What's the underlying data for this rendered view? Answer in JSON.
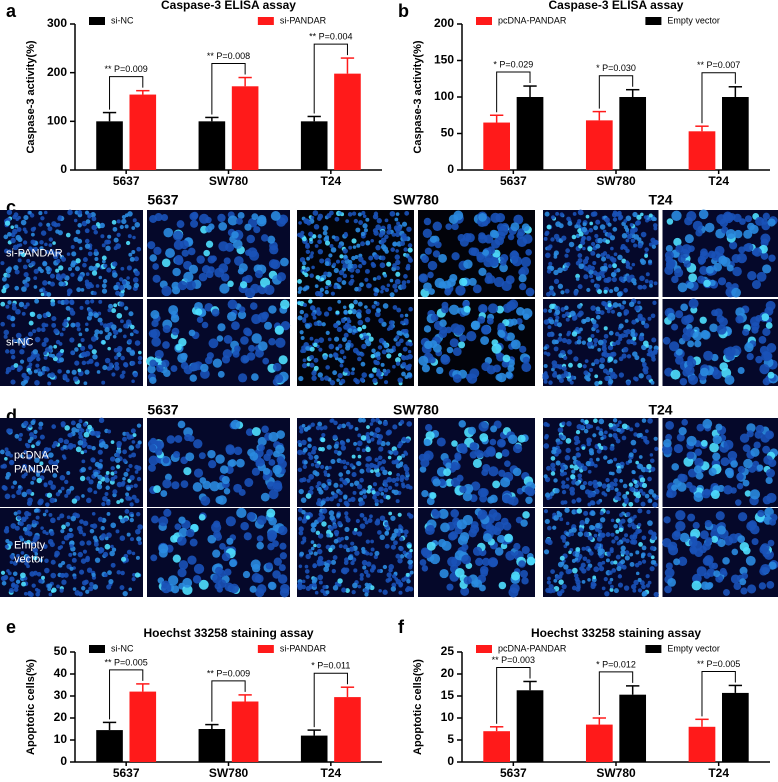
{
  "chart_data": [
    {
      "type": "bar",
      "panel": "a",
      "title": "Caspase-3 ELISA assay",
      "y_label": "Caspase-3 activity(%)",
      "categories": [
        "5637",
        "SW780",
        "T24"
      ],
      "series": [
        {
          "name": "si-NC",
          "color": "#000000",
          "values": [
            100,
            100,
            100
          ],
          "errors": [
            18,
            8,
            10
          ]
        },
        {
          "name": "si-PANDAR",
          "color": "#ff1a1a",
          "values": [
            155,
            172,
            198
          ],
          "errors": [
            8,
            18,
            32
          ]
        }
      ],
      "annotations": [
        "** P=0.009",
        "** P=0.008",
        "** P=0.004"
      ],
      "ylim": [
        0,
        300
      ],
      "yticks": [
        0,
        100,
        200,
        300
      ]
    },
    {
      "type": "bar",
      "panel": "b",
      "title": "Caspase-3 ELISA assay",
      "y_label": "Caspase-3 activity(%)",
      "categories": [
        "5637",
        "SW780",
        "T24"
      ],
      "series": [
        {
          "name": "pcDNA-PANDAR",
          "color": "#ff1a1a",
          "values": [
            65,
            68,
            53
          ],
          "errors": [
            10,
            12,
            7
          ]
        },
        {
          "name": "Empty vector",
          "color": "#000000",
          "values": [
            100,
            100,
            100
          ],
          "errors": [
            15,
            10,
            14
          ]
        }
      ],
      "annotations": [
        "* P=0.029",
        "* P=0.030",
        "** P=0.007"
      ],
      "ylim": [
        0,
        200
      ],
      "yticks": [
        0,
        50,
        100,
        150,
        200
      ]
    },
    {
      "type": "bar",
      "panel": "e",
      "title": "Hoechst 33258 staining assay",
      "y_label": "Apoptotic cells(%)",
      "categories": [
        "5637",
        "SW780",
        "T24"
      ],
      "series": [
        {
          "name": "si-NC",
          "color": "#000000",
          "values": [
            14.5,
            15,
            12
          ],
          "errors": [
            3.5,
            2,
            2.5
          ]
        },
        {
          "name": "si-PANDAR",
          "color": "#ff1a1a",
          "values": [
            32,
            27.5,
            29.5
          ],
          "errors": [
            3.5,
            3,
            4.5
          ]
        }
      ],
      "annotations": [
        "** P=0.005",
        "** P=0.009",
        "* P=0.011"
      ],
      "ylim": [
        0,
        50
      ],
      "yticks": [
        0,
        10,
        20,
        30,
        40,
        50
      ]
    },
    {
      "type": "bar",
      "panel": "f",
      "title": "Hoechst 33258 staining assay",
      "y_label": "Apoptotic cells(%)",
      "categories": [
        "5637",
        "SW780",
        "T24"
      ],
      "series": [
        {
          "name": "pcDNA-PANDAR",
          "color": "#ff1a1a",
          "values": [
            7,
            8.5,
            8
          ],
          "errors": [
            1,
            1.5,
            1.7
          ]
        },
        {
          "name": "Empty vector",
          "color": "#000000",
          "values": [
            16.3,
            15.3,
            15.7
          ],
          "errors": [
            2,
            2,
            1.7
          ]
        }
      ],
      "annotations": [
        "** P=0.003",
        "* P=0.012",
        "** P=0.005"
      ],
      "ylim": [
        0,
        25
      ],
      "yticks": [
        0,
        5,
        10,
        15,
        20,
        25
      ]
    }
  ],
  "image_panels": [
    {
      "panel": "c",
      "columns": [
        "5637",
        "SW780",
        "T24"
      ],
      "rows": [
        [
          "si-PANDAR"
        ],
        [
          "si-NC"
        ]
      ]
    },
    {
      "panel": "d",
      "columns": [
        "5637",
        "SW780",
        "T24"
      ],
      "rows": [
        [
          "pcDNA",
          "PANDAR"
        ],
        [
          "Empty",
          "vector"
        ]
      ]
    }
  ]
}
